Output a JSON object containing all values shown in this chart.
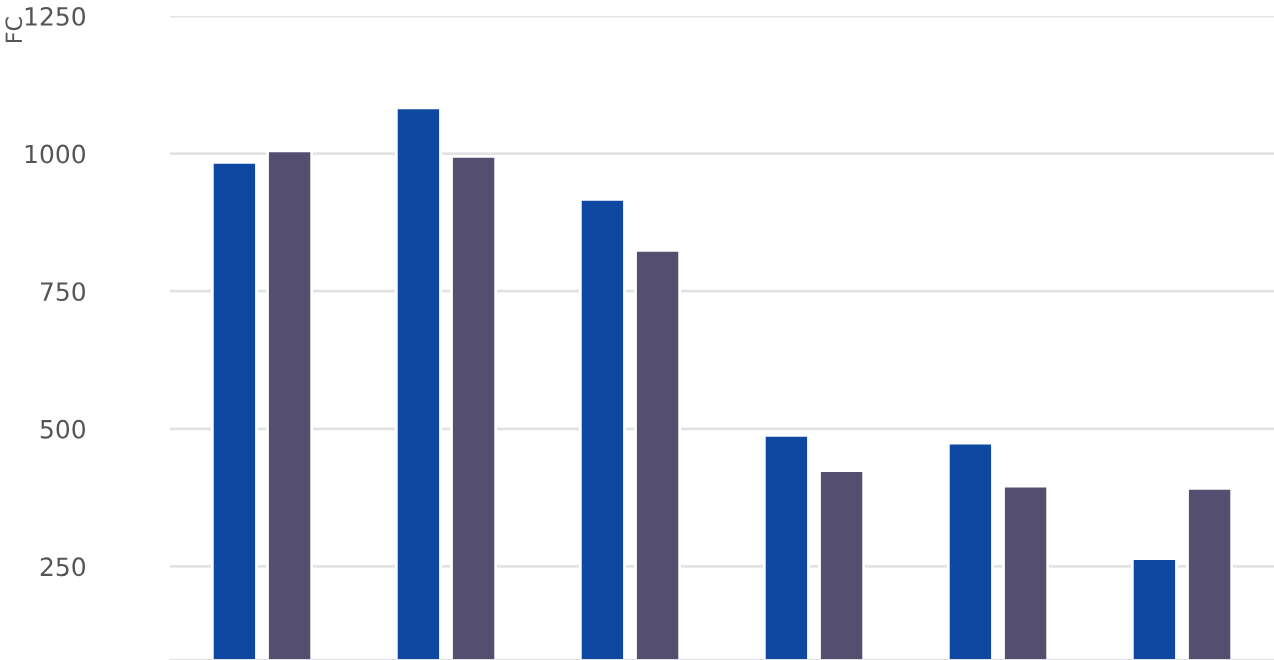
{
  "chart_data": {
    "type": "bar",
    "ylabel": "FC",
    "categories": [
      null,
      null,
      null,
      null,
      null,
      null
    ],
    "series": [
      {
        "color": "#0f48a0",
        "values": [
          984,
          1083,
          917,
          488,
          474,
          264
        ]
      },
      {
        "color": "#544f70",
        "values": [
          1005,
          995,
          824,
          424,
          396,
          392
        ]
      }
    ],
    "ylim": [
      80,
      1250
    ],
    "yticks": [
      250,
      500,
      750,
      1000,
      1250
    ],
    "grid": "y",
    "tick_labels": "y",
    "legend": false
  }
}
